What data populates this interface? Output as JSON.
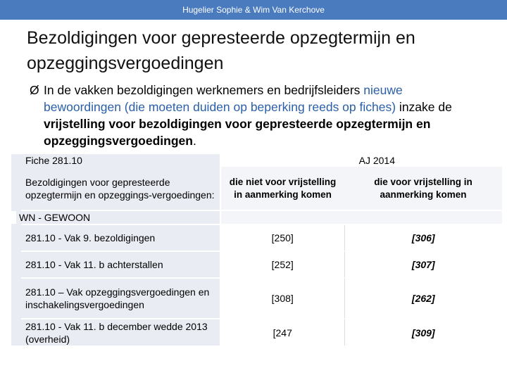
{
  "header": {
    "authors": "Hugelier Sophie & Wim Van Kerchove"
  },
  "title": "Bezoldigingen voor gepresteerde opzegtermijn en opzeggingsvergoedingen",
  "bullet": {
    "arrow": "Ø",
    "part1": "In de vakken bezoldigingen werknemers en bedrijfsleiders ",
    "part2": "nieuwe bewoordingen (die moeten duiden op beperking reeds op fiches)",
    "part3": " inzake de ",
    "part4": "vrijstelling voor bezoldigingen voor gepresteerde opzegtermijn en opzeggingsvergoedingen",
    "part5": "."
  },
  "table": {
    "fiche": "Fiche 281.10",
    "fiche_desc": "Bezoldigingen voor gepresteerde opzegtermijn en opzeggings-vergoedingen:",
    "aj": "AJ 2014",
    "col2_header": "die niet voor vrijstelling in aanmerking komen",
    "col3_header": "die voor vrijstelling in aanmerking komen",
    "section": "WN - GEWOON",
    "rows": [
      {
        "label": "281.10 - Vak 9. bezoldigingen",
        "v1": "[250]",
        "v2": "[306]"
      },
      {
        "label": "281.10 - Vak 11. b achterstallen",
        "v1": "[252]",
        "v2": "[307]"
      },
      {
        "label": "281.10 – Vak opzeggingsvergoedingen en inschakelingsvergoedingen",
        "v1": "[308]",
        "v2": "[262]"
      },
      {
        "label": "281.10 - Vak 11. b december wedde 2013 (overheid)",
        "v1": "[247",
        "v2": "[309]"
      }
    ]
  }
}
